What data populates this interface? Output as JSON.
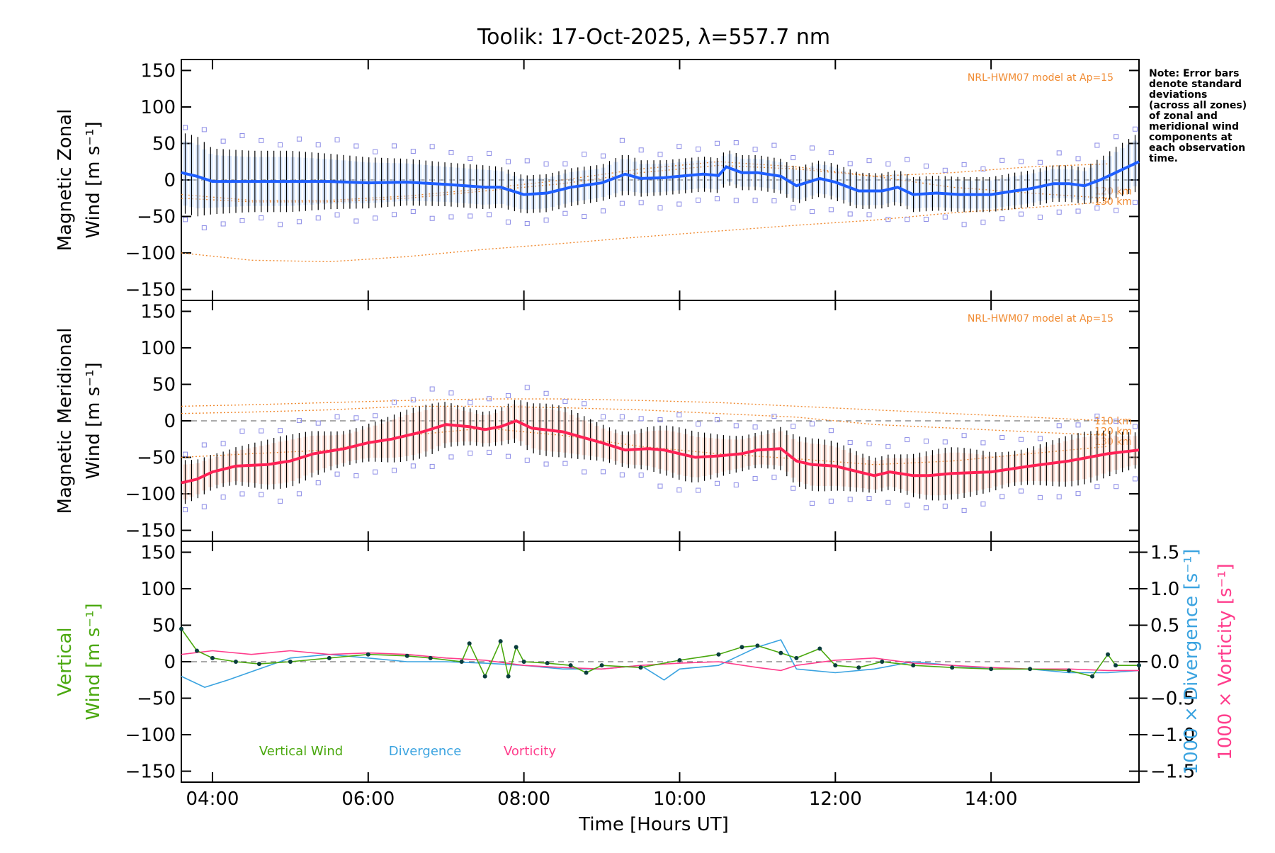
{
  "chart_data": {
    "type": "line",
    "title": "Toolik: 17-Oct-2025, λ=557.7 nm",
    "note_lines": [
      "Note: Error bars",
      "denote standard",
      "deviations",
      "(across all zones)",
      "of zonal and",
      "meridional wind",
      "components at",
      "each observation",
      "time."
    ],
    "xlabel": "Time [Hours UT]",
    "xlim": [
      3.6,
      15.9
    ],
    "x_ticks": [
      4,
      6,
      8,
      10,
      12,
      14
    ],
    "x_tick_labels": [
      "04:00",
      "06:00",
      "08:00",
      "10:00",
      "12:00",
      "14:00"
    ],
    "colors": {
      "zonal": "#1f5fff",
      "meridional": "#ff2255",
      "vertical": "#4aa80e",
      "divergence": "#3aa3e0",
      "vorticity": "#ff3d8c",
      "model": "#f08a30",
      "spread": "#8c8ce6",
      "error_bar": "#000000"
    },
    "panels": [
      {
        "id": "zonal",
        "ylabel": "Magnetic Zonal Wind [m s⁻¹]",
        "ylabel_lines": [
          "Magnetic Zonal",
          "Wind [m s⁻¹]"
        ],
        "ylim": [
          -165,
          165
        ],
        "y_ticks": [
          -150,
          -100,
          -50,
          0,
          50,
          100,
          150
        ],
        "y_tick_labels": [
          "−150",
          "−100",
          "−50",
          "0",
          "50",
          "100",
          "150"
        ],
        "model_label": "NRL-HWM07 model at Ap=15",
        "model_altitude_labels": [
          "120 km",
          "130 km"
        ],
        "series": {
          "name": "Zonal wind",
          "x": [
            3.6,
            3.8,
            4.0,
            4.5,
            5.0,
            5.5,
            6.0,
            6.5,
            7.0,
            7.5,
            7.7,
            8.0,
            8.3,
            8.6,
            9.0,
            9.3,
            9.5,
            9.8,
            10.0,
            10.3,
            10.5,
            10.6,
            10.8,
            11.0,
            11.3,
            11.5,
            11.8,
            12.0,
            12.3,
            12.6,
            12.8,
            13.0,
            13.3,
            13.6,
            14.0,
            14.3,
            14.5,
            14.8,
            15.0,
            15.2,
            15.4,
            15.6,
            15.9
          ],
          "y": [
            10,
            5,
            -2,
            -2,
            -2,
            -2,
            -4,
            -3,
            -6,
            -10,
            -10,
            -20,
            -18,
            -10,
            -4,
            8,
            2,
            3,
            5,
            8,
            6,
            18,
            10,
            10,
            5,
            -8,
            2,
            -3,
            -15,
            -15,
            -10,
            -20,
            -18,
            -20,
            -20,
            -15,
            -12,
            -5,
            -5,
            -8,
            0,
            10,
            25
          ],
          "error": [
            55,
            55,
            45,
            42,
            42,
            38,
            35,
            32,
            30,
            30,
            28,
            26,
            26,
            26,
            25,
            28,
            25,
            24,
            24,
            24,
            24,
            24,
            24,
            24,
            24,
            25,
            25,
            25,
            25,
            24,
            24,
            24,
            24,
            24,
            24,
            25,
            25,
            25,
            25,
            25,
            30,
            35,
            40
          ]
        },
        "model_curves": [
          {
            "x": [
              3.6,
              4.5,
              5.5,
              6.5,
              7.5,
              8.5,
              9.5,
              10.5,
              11.5,
              12.5,
              13.5,
              14.5,
              15.5
            ],
            "y": [
              -100,
              -110,
              -112,
              -105,
              -95,
              -87,
              -78,
              -70,
              -62,
              -55,
              -45,
              -38,
              -30
            ]
          },
          {
            "x": [
              3.6,
              4.5,
              5.5,
              6.5,
              7.5,
              8.5,
              9.5,
              10.5,
              11.5,
              12.5,
              13.5,
              14.5,
              15.5
            ],
            "y": [
              -25,
              -30,
              -30,
              -25,
              -15,
              -5,
              10,
              20,
              15,
              5,
              -10,
              -18,
              -25
            ]
          },
          {
            "x": [
              3.6,
              4.5,
              5.5,
              6.5,
              7.5,
              8.5,
              9.5,
              10.5,
              11.5,
              12.5,
              13.5,
              14.5,
              15.5
            ],
            "y": [
              -20,
              -28,
              -28,
              -22,
              -12,
              0,
              15,
              25,
              18,
              5,
              10,
              18,
              22
            ]
          }
        ]
      },
      {
        "id": "meridional",
        "ylabel": "Magnetic Meridional Wind [m s⁻¹]",
        "ylabel_lines": [
          "Magnetic Meridional",
          "Wind [m s⁻¹]"
        ],
        "ylim": [
          -165,
          165
        ],
        "y_ticks": [
          -150,
          -100,
          -50,
          0,
          50,
          100,
          150
        ],
        "y_tick_labels": [
          "−150",
          "−100",
          "−50",
          "0",
          "50",
          "100",
          "150"
        ],
        "model_label": "NRL-HWM07 model at Ap=15",
        "model_altitude_labels": [
          "110 km",
          "120 km",
          "130 km"
        ],
        "series": {
          "name": "Meridional wind",
          "x": [
            3.6,
            3.8,
            4.0,
            4.3,
            4.7,
            5.0,
            5.3,
            5.7,
            6.0,
            6.3,
            6.7,
            7.0,
            7.3,
            7.5,
            7.7,
            7.9,
            8.1,
            8.5,
            9.0,
            9.3,
            9.6,
            9.8,
            10.0,
            10.2,
            10.5,
            10.8,
            11.0,
            11.3,
            11.5,
            11.7,
            12.0,
            12.3,
            12.5,
            12.7,
            13.0,
            13.2,
            13.5,
            14.0,
            14.5,
            15.0,
            15.5,
            15.9
          ],
          "y": [
            -85,
            -80,
            -70,
            -62,
            -60,
            -55,
            -45,
            -38,
            -30,
            -25,
            -15,
            -5,
            -8,
            -12,
            -8,
            0,
            -10,
            -15,
            -30,
            -40,
            -38,
            -40,
            -45,
            -50,
            -48,
            -45,
            -40,
            -38,
            -55,
            -60,
            -62,
            -70,
            -75,
            -70,
            -75,
            -75,
            -72,
            -70,
            -62,
            -55,
            -45,
            -40
          ]
        },
        "model_curves": [
          {
            "x": [
              3.6,
              4.5,
              5.5,
              6.5,
              7.5,
              8.5,
              9.5,
              10.5,
              11.5,
              12.5,
              13.5,
              14.5,
              15.5
            ],
            "y": [
              20,
              22,
              25,
              28,
              30,
              30,
              28,
              25,
              20,
              15,
              10,
              5,
              0
            ]
          },
          {
            "x": [
              3.6,
              4.5,
              5.5,
              6.5,
              7.5,
              8.5,
              9.5,
              10.5,
              11.5,
              12.5,
              13.5,
              14.5,
              15.5
            ],
            "y": [
              10,
              12,
              15,
              20,
              20,
              18,
              15,
              10,
              5,
              -5,
              -10,
              -15,
              -20
            ]
          },
          {
            "x": [
              3.6,
              4.5,
              5.5,
              6.5,
              7.5,
              8.5,
              9.5,
              10.5,
              11.5,
              12.5,
              13.5,
              14.5,
              15.5
            ],
            "y": [
              -50,
              -45,
              -40,
              -20,
              -10,
              -20,
              -35,
              -45,
              -52,
              -60,
              -55,
              -45,
              -35
            ]
          }
        ]
      },
      {
        "id": "vertical",
        "ylabel": "Vertical Wind [m s⁻¹]",
        "ylabel_lines": [
          "Vertical",
          "Wind [m s⁻¹]"
        ],
        "ylim": [
          -165,
          165
        ],
        "y_ticks": [
          -150,
          -100,
          -50,
          0,
          50,
          100,
          150
        ],
        "y_tick_labels": [
          "−150",
          "−100",
          "−50",
          "0",
          "50",
          "100",
          "150"
        ],
        "y2lim": [
          -1.65,
          1.65
        ],
        "y2_ticks": [
          -1.5,
          -1.0,
          -0.5,
          0.0,
          0.5,
          1.0,
          1.5
        ],
        "y2_tick_labels": [
          "−1.5",
          "−1.0",
          "−0.5",
          "0.0",
          "0.5",
          "1.0",
          "1.5"
        ],
        "y2label_divergence": "1000 × Divergence [s⁻¹]",
        "y2label_vorticity": "1000 × Vorticity [s⁻¹]",
        "legend": [
          "Vertical Wind",
          "Divergence",
          "Vorticity"
        ],
        "series": [
          {
            "name": "Vertical Wind",
            "x": [
              3.6,
              3.8,
              4.0,
              4.3,
              4.6,
              5.0,
              5.5,
              6.0,
              6.5,
              6.8,
              7.2,
              7.3,
              7.5,
              7.7,
              7.8,
              7.9,
              8.0,
              8.3,
              8.6,
              8.8,
              9.0,
              9.5,
              10.0,
              10.5,
              10.8,
              11.0,
              11.3,
              11.5,
              11.8,
              12.0,
              12.3,
              12.6,
              13.0,
              13.5,
              14.0,
              14.5,
              15.0,
              15.3,
              15.5,
              15.6,
              15.9
            ],
            "y": [
              45,
              15,
              5,
              0,
              -3,
              0,
              5,
              10,
              8,
              5,
              0,
              25,
              -20,
              28,
              -20,
              20,
              0,
              -2,
              -5,
              -15,
              -5,
              -8,
              2,
              10,
              20,
              22,
              12,
              5,
              18,
              -5,
              -8,
              0,
              -5,
              -8,
              -10,
              -10,
              -12,
              -20,
              10,
              -5,
              -5
            ]
          },
          {
            "name": "Divergence",
            "x": [
              3.6,
              3.9,
              4.2,
              4.6,
              5.0,
              5.5,
              6.0,
              6.5,
              7.0,
              7.5,
              8.0,
              8.5,
              9.0,
              9.5,
              9.8,
              10.0,
              10.5,
              10.8,
              11.0,
              11.3,
              11.5,
              12.0,
              12.5,
              13.0,
              13.5,
              14.0,
              14.5,
              15.0,
              15.5,
              15.9
            ],
            "y": [
              -0.2,
              -0.35,
              -0.25,
              -0.1,
              0.05,
              0.1,
              0.05,
              0.0,
              0.0,
              -0.02,
              -0.05,
              -0.1,
              -0.1,
              -0.05,
              -0.25,
              -0.1,
              -0.05,
              0.1,
              0.2,
              0.3,
              -0.1,
              -0.15,
              -0.1,
              0.0,
              -0.05,
              -0.1,
              -0.1,
              -0.15,
              -0.15,
              -0.12
            ]
          },
          {
            "name": "Vorticity",
            "x": [
              3.6,
              4.0,
              4.5,
              5.0,
              5.5,
              6.0,
              6.5,
              7.0,
              7.5,
              8.0,
              8.5,
              9.0,
              9.5,
              10.0,
              10.5,
              11.0,
              11.3,
              11.5,
              12.0,
              12.5,
              13.0,
              13.5,
              14.0,
              14.5,
              15.0,
              15.5,
              15.9
            ],
            "y": [
              0.1,
              0.15,
              0.1,
              0.15,
              0.1,
              0.12,
              0.1,
              0.05,
              0.02,
              -0.05,
              -0.08,
              -0.1,
              -0.05,
              -0.02,
              0.0,
              -0.08,
              -0.12,
              -0.05,
              0.02,
              0.05,
              -0.02,
              -0.05,
              -0.08,
              -0.1,
              -0.1,
              -0.12,
              -0.12
            ]
          }
        ]
      }
    ]
  }
}
